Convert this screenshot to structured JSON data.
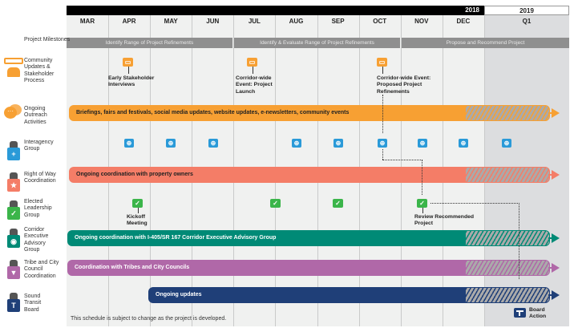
{
  "header": {
    "year_2018": "2018",
    "year_2019": "2019",
    "months": [
      "MAR",
      "APR",
      "MAY",
      "JUN",
      "JUL",
      "AUG",
      "SEP",
      "OCT",
      "NOV",
      "DEC"
    ],
    "q1": "Q1"
  },
  "phases": [
    "Identify Range of Project Refinements",
    "Identify & Evaluate Range of Project Refinements",
    "Propose and Recommend Project"
  ],
  "rows": [
    {
      "label": "Project Milestones"
    },
    {
      "label": "Community Updates & Stakeholder Process",
      "icon": "speech-group-icon"
    },
    {
      "label": "Ongoing Outreach Activities",
      "icon": "chat-bubbles-icon"
    },
    {
      "label": "Interagency Group",
      "icon": "plus-badge-icon"
    },
    {
      "label": "Right of Way Coordination",
      "icon": "star-badge-icon"
    },
    {
      "label": "Elected Leadership Group",
      "icon": "check-badge-icon"
    },
    {
      "label": "Corridor Executive Advisory Group",
      "icon": "globe-badge-icon"
    },
    {
      "label": "Tribe and City Council Coordination",
      "icon": "triangle-badge-icon"
    },
    {
      "label": "Sound Transit Board",
      "icon": "sound-transit-icon"
    }
  ],
  "bars": {
    "outreach": "Briefings, fairs and festivals, social media updates, website updates, e-newsletters, community events",
    "row": "Ongoing coordination with property owners",
    "ceag": "Ongoing coordination with I-405/SR 167 Corridor Executive Advisory Group",
    "tribes": "Coordination with Tribes and City Councils",
    "board": "Ongoing updates"
  },
  "events": {
    "early": "Early Stakeholder Interviews",
    "launch": "Corridor-wide Event: Project Launch",
    "proposed": "Corridor-wide Event: Proposed Project Refinements",
    "kickoff": "Kickoff Meeting",
    "review": "Review Recommended Project",
    "board_action": "Board Action"
  },
  "colors": {
    "orange": "#f7a033",
    "salmon": "#f47d67",
    "teal": "#008a76",
    "purple": "#b068a8",
    "navy": "#1f3f78",
    "blue": "#2a9ad8",
    "green": "#3bb54a"
  },
  "footer": "This schedule is subject to change as the project is developed."
}
